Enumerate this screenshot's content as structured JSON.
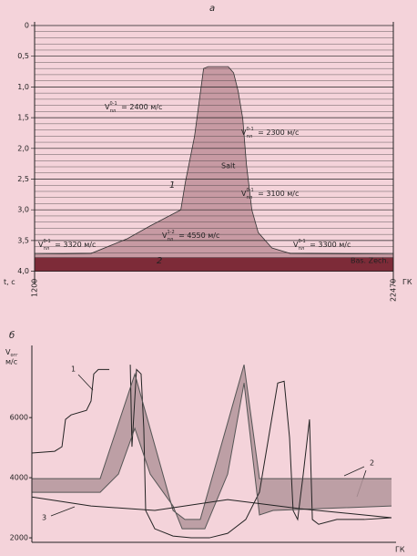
{
  "chart_data": [
    {
      "type": "section",
      "panel": "а",
      "ylabel": "t, с",
      "xlabel": "ГК",
      "xlim": [
        1200,
        22470
      ],
      "xticks": [
        1200,
        22470
      ],
      "ylim": [
        0,
        4.0
      ],
      "y_inverted": true,
      "yticks": [
        0,
        {
          "value": 0.5,
          "label": "0,5"
        },
        {
          "value": 1.0,
          "label": "1,0"
        },
        {
          "value": 1.5,
          "label": "1,5"
        },
        {
          "value": 2.0,
          "label": "2,0"
        },
        {
          "value": 2.5,
          "label": "2,5"
        },
        {
          "value": 3.0,
          "label": "3,0"
        },
        {
          "value": 3.5,
          "label": "3,5"
        },
        {
          "value": 4.0,
          "label": "4,0"
        }
      ],
      "minor_yticks": [
        0.1,
        0.2,
        0.3,
        0.4,
        0.6,
        0.7,
        0.8,
        0.9,
        1.1,
        1.2,
        1.3,
        1.4,
        1.6,
        1.7,
        1.8,
        1.9,
        2.1,
        2.2,
        2.3,
        2.4,
        2.6,
        2.7,
        2.8,
        2.9,
        3.1,
        3.2,
        3.3,
        3.4,
        3.6,
        3.7
      ],
      "body": {
        "label": "Salt",
        "color": "#c79aa3",
        "x": [
          1200,
          4550,
          6700,
          8060,
          9870,
          10140,
          10680,
          11220,
          11490,
          12680,
          13000,
          13270,
          13540,
          13760,
          14080,
          14460,
          15270,
          16350,
          22470
        ],
        "values": [
          3.72,
          3.71,
          3.47,
          3.26,
          3.0,
          2.55,
          1.81,
          0.7,
          0.67,
          0.67,
          0.77,
          1.07,
          1.51,
          2.26,
          3.0,
          3.37,
          3.62,
          3.71,
          3.72
        ]
      },
      "layer": {
        "label": "Bas. Zech.",
        "color": "#7d2b38",
        "values": [
          3.78,
          4.0
        ]
      },
      "curve_labels": [
        "1",
        "2"
      ],
      "annotations": [
        {
          "symbol": "V",
          "sub": "пл",
          "sup": "0-1",
          "text": "= 2400 м/с"
        },
        {
          "symbol": "V",
          "sub": "пл",
          "sup": "0-1",
          "text": "= 2300 м/с"
        },
        {
          "symbol": "V",
          "sub": "пл",
          "sup": "0-1",
          "text": "= 3100 м/с"
        },
        {
          "symbol": "V",
          "sub": "пл",
          "sup": "0-1",
          "text": "= 3320 м/с"
        },
        {
          "symbol": "V",
          "sub": "пл",
          "sup": "1-2",
          "text": "= 4550 м/с"
        },
        {
          "symbol": "V",
          "sub": "пл",
          "sup": "0-1",
          "text": "= 3300 м/с"
        }
      ]
    },
    {
      "type": "line",
      "panel": "б",
      "ylabel": {
        "symbol": "V",
        "sub": "огг",
        "unit": "м/с"
      },
      "xlabel": "ГК",
      "xlim": [
        1200,
        22470
      ],
      "ylim": [
        1850,
        8400
      ],
      "yticks": [
        2000,
        4000,
        6000
      ],
      "series": [
        {
          "label": "1",
          "color": "#222",
          "x": [
            1200,
            2550,
            2980,
            3190,
            3520,
            4430,
            4700,
            4860,
            5130,
            5780,
            6400,
            7020,
            7120,
            7390,
            7660,
            7820,
            7930,
            8470,
            9550,
            10620,
            11700,
            12780,
            13850,
            14660,
            15200,
            15740,
            16120,
            16440,
            16650,
            16920,
            17250,
            17620,
            17790,
            18160,
            19240,
            20860,
            22470
          ],
          "values": [
            4820,
            4880,
            5030,
            5940,
            6090,
            6240,
            6550,
            7450,
            7600,
            7600,
            null,
            7760,
            5030,
            7600,
            7450,
            5640,
            2910,
            2300,
            2060,
            2000,
            2000,
            2150,
            2610,
            3520,
            5330,
            7150,
            7210,
            5330,
            2910,
            2610,
            4120,
            5940,
            2610,
            2450,
            2610,
            2610,
            2670
          ]
        },
        {
          "label": "2",
          "color": "#555",
          "x": [
            1200,
            5240,
            6320,
            7290,
            8200,
            9550,
            10090,
            11430,
            12780,
            13750,
            14660,
            15470,
            22470
          ],
          "values": [
            3515,
            3515,
            4120,
            5640,
            4120,
            3060,
            2300,
            2300,
            4120,
            7150,
            2760,
            2910,
            3060
          ]
        },
        {
          "color": "#555",
          "x": [
            1200,
            5240,
            7290,
            9550,
            10250,
            11160,
            13750,
            14660,
            14930,
            22470
          ],
          "values": [
            3970,
            3970,
            7450,
            2910,
            2610,
            2610,
            7760,
            3970,
            3970,
            3970
          ]
        },
        {
          "label": "3",
          "color": "#222",
          "x": [
            1200,
            4700,
            8470,
            12780,
            17070,
            22470
          ],
          "values": [
            3360,
            3060,
            2910,
            3270,
            2970,
            2670
          ]
        }
      ],
      "band_color": "#b3959b"
    }
  ]
}
